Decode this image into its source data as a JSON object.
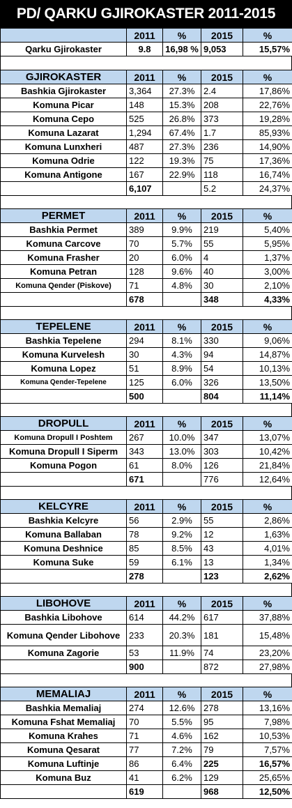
{
  "title": "PD/ QARKU GJIROKASTER 2011-2015",
  "headers": {
    "y2011": "2011",
    "pct": "%",
    "y2015": "2015"
  },
  "qarku": {
    "name": "Qarku Gjirokaster",
    "v2011": "9.8",
    "p2011": "16,98 %",
    "v2015": "9,053",
    "p2015": "15,57%"
  },
  "sections": [
    {
      "name": "GJIROKASTER",
      "rows": [
        {
          "name": "Bashkia Gjirokaster",
          "v2011": "3,364",
          "p2011": "27.3%",
          "v2015": "2.4",
          "p2015": "17,86%"
        },
        {
          "name": "Komuna Picar",
          "v2011": "148",
          "p2011": "15.3%",
          "v2015": "208",
          "p2015": "22,76%"
        },
        {
          "name": "Komuna Cepo",
          "v2011": "525",
          "p2011": "26.8%",
          "v2015": "373",
          "p2015": "19,28%"
        },
        {
          "name": "Komuna Lazarat",
          "v2011": "1,294",
          "p2011": "67.4%",
          "v2015": "1.7",
          "p2015": "85,93%"
        },
        {
          "name": "Komuna Lunxheri",
          "v2011": "487",
          "p2011": "27.3%",
          "v2015": "236",
          "p2015": "14,90%"
        },
        {
          "name": "Komuna Odrie",
          "v2011": "122",
          "p2011": "19.3%",
          "v2015": "75",
          "p2015": "17,36%"
        },
        {
          "name": "Komuna Antigone",
          "v2011": "167",
          "p2011": "22.9%",
          "v2015": "118",
          "p2015": "16,74%"
        }
      ],
      "total": {
        "v2011": "6,107",
        "v2015": "5.2",
        "p2015": "24,37%"
      }
    },
    {
      "name": "PERMET",
      "rows": [
        {
          "name": "Bashkia Permet",
          "v2011": "389",
          "p2011": "9.9%",
          "v2015": "219",
          "p2015": "5,40%"
        },
        {
          "name": "Komuna Carcove",
          "v2011": "70",
          "p2011": "5.7%",
          "v2015": "55",
          "p2015": "5,95%"
        },
        {
          "name": "Komuna Frasher",
          "v2011": "20",
          "p2011": "6.0%",
          "v2015": "4",
          "p2015": "1,37%"
        },
        {
          "name": "Komuna Petran",
          "v2011": "128",
          "p2011": "9.6%",
          "v2015": "40",
          "p2015": "3,00%"
        },
        {
          "name": "Komuna Qender (Piskove)",
          "v2011": "71",
          "p2011": "4.8%",
          "v2015": "30",
          "p2015": "2,10%"
        }
      ],
      "total": {
        "v2011": "678",
        "v2015": "348",
        "p2015": "4,33%"
      }
    },
    {
      "name": "TEPELENE",
      "rows": [
        {
          "name": "Bashkia Tepelene",
          "v2011": "294",
          "p2011": "8.1%",
          "v2015": "330",
          "p2015": "9,06%"
        },
        {
          "name": "Komuna Kurvelesh",
          "v2011": "30",
          "p2011": "4.3%",
          "v2015": "94",
          "p2015": "14,87%"
        },
        {
          "name": "Komuna Lopez",
          "v2011": "51",
          "p2011": "8.9%",
          "v2015": "54",
          "p2015": "10,13%"
        },
        {
          "name": "Komuna Qender-Tepelene",
          "v2011": "125",
          "p2011": "6.0%",
          "v2015": "326",
          "p2015": "13,50%"
        }
      ],
      "total": {
        "v2011": "500",
        "v2015": "804",
        "p2015": "11,14%"
      }
    },
    {
      "name": "DROPULL",
      "rows": [
        {
          "name": "Komuna Dropull I Poshtem",
          "v2011": "267",
          "p2011": "10.0%",
          "v2015": "347",
          "p2015": "13,07%"
        },
        {
          "name": "Komuna Dropull I Siperm",
          "v2011": "343",
          "p2011": "13.0%",
          "v2015": "303",
          "p2015": "10,42%"
        },
        {
          "name": "Komuna Pogon",
          "v2011": "61",
          "p2011": "8.0%",
          "v2015": "126",
          "p2015": "21,84%"
        }
      ],
      "total": {
        "v2011": "671",
        "v2015": "776",
        "p2015": "12,64%"
      }
    },
    {
      "name": "KELCYRE",
      "rows": [
        {
          "name": "Bashkia Kelcyre",
          "v2011": "56",
          "p2011": "2.9%",
          "v2015": "55",
          "p2015": "2,86%"
        },
        {
          "name": "Komuna Ballaban",
          "v2011": "78",
          "p2011": "9.2%",
          "v2015": "12",
          "p2015": "1,63%"
        },
        {
          "name": "Komuna Deshnice",
          "v2011": "85",
          "p2011": "8.5%",
          "v2015": "43",
          "p2015": "4,01%"
        },
        {
          "name": "Komuna Suke",
          "v2011": "59",
          "p2011": "6.1%",
          "v2015": "13",
          "p2015": "1,34%"
        }
      ],
      "total": {
        "v2011": "278",
        "v2015": "123",
        "p2015": "2,62%"
      }
    },
    {
      "name": "LIBOHOVE",
      "rows": [
        {
          "name": "Bashkia Libohove",
          "v2011": "614",
          "p2011": "44.2%",
          "v2015": "617",
          "p2015": "37,88%"
        },
        {
          "name": "Komuna Qender Libohove",
          "v2011": "233",
          "p2011": "20.3%",
          "v2015": "181",
          "p2015": "15,48%"
        },
        {
          "name": "Komuna Zagorie",
          "v2011": "53",
          "p2011": "11.9%",
          "v2015": "74",
          "p2015": "23,20%"
        }
      ],
      "total": {
        "v2011": "900",
        "v2015": "872",
        "p2015": "27,98%"
      }
    },
    {
      "name": "MEMALIAJ",
      "rows": [
        {
          "name": "Bashkia Memaliaj",
          "v2011": "274",
          "p2011": "12.6%",
          "v2015": "278",
          "p2015": "13,16%"
        },
        {
          "name": "Komuna Fshat Memaliaj",
          "v2011": "70",
          "p2011": "5.5%",
          "v2015": "95",
          "p2015": "7,98%"
        },
        {
          "name": "Komuna Krahes",
          "v2011": "71",
          "p2011": "4.6%",
          "v2015": "162",
          "p2015": "10,53%"
        },
        {
          "name": "Komuna Qesarat",
          "v2011": "77",
          "p2011": "7.2%",
          "v2015": "79",
          "p2015": "7,57%"
        },
        {
          "name": "Komuna Luftinje",
          "v2011": "86",
          "p2011": "6.4%",
          "v2015": "225",
          "p2015": "16,57%"
        },
        {
          "name": "Komuna Buz",
          "v2011": "41",
          "p2011": "6.2%",
          "v2015": "129",
          "p2015": "25,65%"
        }
      ],
      "total": {
        "v2011": "619",
        "v2015": "968",
        "p2015": "12,50%"
      }
    }
  ]
}
